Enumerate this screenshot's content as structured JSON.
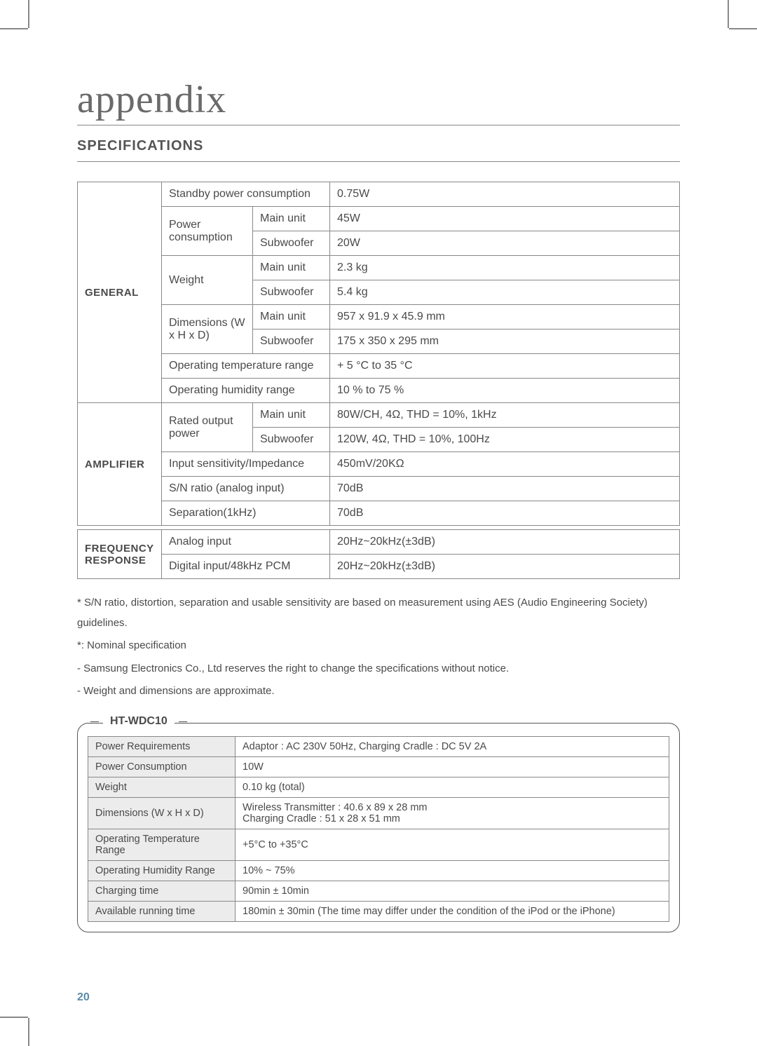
{
  "title": "appendix",
  "subtitle": "SPECIFICATIONS",
  "spec": {
    "general": {
      "label": "GENERAL",
      "standby_label": "Standby power consumption",
      "standby_val": "0.75W",
      "power_label": "Power consumption",
      "power_main_label": "Main unit",
      "power_main_val": "45W",
      "power_sub_label": "Subwoofer",
      "power_sub_val": "20W",
      "weight_label": "Weight",
      "weight_main_label": "Main unit",
      "weight_main_val": "2.3 kg",
      "weight_sub_label": "Subwoofer",
      "weight_sub_val": "5.4 kg",
      "dim_label": "Dimensions (W x H x D)",
      "dim_main_label": "Main unit",
      "dim_main_val": "957 x 91.9 x 45.9 mm",
      "dim_sub_label": "Subwoofer",
      "dim_sub_val": "175 x 350 x 295 mm",
      "temp_label": "Operating temperature range",
      "temp_val": "+ 5 °C to 35 °C",
      "humid_label": "Operating humidity range",
      "humid_val": "10 % to 75 %"
    },
    "amplifier": {
      "label": "AMPLIFIER",
      "rated_label": "Rated output power",
      "rated_main_label": "Main unit",
      "rated_main_val": "80W/CH, 4Ω,  THD = 10%, 1kHz",
      "rated_sub_label": "Subwoofer",
      "rated_sub_val": "120W, 4Ω,  THD = 10%, 100Hz",
      "input_label": "Input sensitivity/Impedance",
      "input_val": "450mV/20KΩ",
      "sn_label": "S/N ratio (analog input)",
      "sn_val": "70dB",
      "sep_label": "Separation(1kHz)",
      "sep_val": "70dB"
    },
    "freq": {
      "label": "FREQUENCY RESPONSE",
      "analog_label": "Analog input",
      "analog_val": "20Hz~20kHz(±3dB)",
      "digital_label": "Digital input/48kHz PCM",
      "digital_val": "20Hz~20kHz(±3dB)"
    }
  },
  "notes": {
    "n1": "* S/N ratio, distortion, separation and usable sensitivity are based on measurement using AES (Audio Engineering Society) guidelines.",
    "n2": "*: Nominal specification",
    "n3": "- Samsung Electronics Co., Ltd reserves the right to change the specifications without notice.",
    "n4": "- Weight and dimensions are approximate."
  },
  "model": {
    "label": "HT-WDC10",
    "rows": {
      "r0l": "Power Requirements",
      "r0v": "Adaptor : AC 230V 50Hz, Charging Cradle : DC 5V 2A",
      "r1l": "Power Consumption",
      "r1v": "10W",
      "r2l": "Weight",
      "r2v": "0.10 kg (total)",
      "r3l": "Dimensions (W x H x D)",
      "r3v": "Wireless Transmitter : 40.6 x 89 x 28 mm\nCharging Cradle : 51 x 28 x 51 mm",
      "r4l": "Operating Temperature Range",
      "r4v": "+5°C to +35°C",
      "r5l": "Operating Humidity Range",
      "r5v": "10% ~ 75%",
      "r6l": "Charging time",
      "r6v": "90min ± 10min",
      "r7l": "Available running time",
      "r7v": "180min ± 30min  (The time may differ under the condition of the iPod or the iPhone)"
    }
  },
  "page_number": "20"
}
